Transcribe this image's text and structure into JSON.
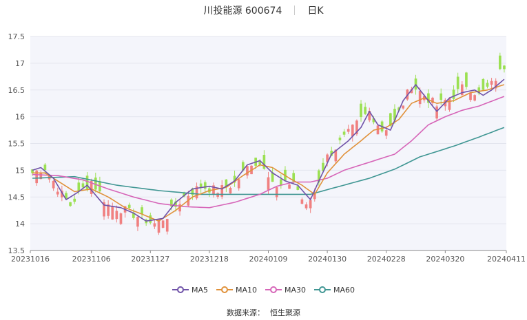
{
  "header": {
    "title": "川投能源 600674",
    "period": "日K"
  },
  "legend": [
    {
      "name": "MA5",
      "color": "#6f52a8"
    },
    {
      "name": "MA10",
      "color": "#e0913a"
    },
    {
      "name": "MA30",
      "color": "#d665b8"
    },
    {
      "name": "MA60",
      "color": "#3f9693"
    }
  ],
  "source": {
    "label": "数据来源：",
    "value": "恒生聚源"
  },
  "chart_data": {
    "type": "candlestick",
    "ylim": [
      13.5,
      17.5
    ],
    "y_ticks": [
      "13.5",
      "14",
      "14.5",
      "15",
      "15.5",
      "16",
      "16.5",
      "17",
      "17.5"
    ],
    "x_tick_labels": [
      "20231016",
      "20231106",
      "20231127",
      "20231218",
      "20240109",
      "20240130",
      "20240228",
      "20240320",
      "20240411"
    ],
    "x_tick_index": [
      0,
      14,
      28,
      42,
      56,
      70,
      84,
      98,
      112
    ],
    "n_days": 113,
    "up_color": "#f08080",
    "down_color": "#9be052",
    "anchors": [
      [
        0,
        14.95
      ],
      [
        3,
        15.05
      ],
      [
        7,
        14.55
      ],
      [
        9,
        14.35
      ],
      [
        12,
        14.65
      ],
      [
        14,
        14.8
      ],
      [
        18,
        14.35
      ],
      [
        22,
        14.25
      ],
      [
        26,
        14.1
      ],
      [
        29,
        14.0
      ],
      [
        32,
        14.15
      ],
      [
        36,
        14.5
      ],
      [
        40,
        14.7
      ],
      [
        44,
        14.62
      ],
      [
        48,
        14.75
      ],
      [
        52,
        15.15
      ],
      [
        55,
        15.1
      ],
      [
        58,
        14.65
      ],
      [
        62,
        14.8
      ],
      [
        65,
        14.3
      ],
      [
        67,
        14.6
      ],
      [
        70,
        15.25
      ],
      [
        74,
        15.6
      ],
      [
        78,
        15.95
      ],
      [
        80,
        16.1
      ],
      [
        83,
        15.75
      ],
      [
        86,
        15.9
      ],
      [
        90,
        16.6
      ],
      [
        93,
        16.4
      ],
      [
        96,
        16.2
      ],
      [
        100,
        16.4
      ],
      [
        103,
        16.6
      ],
      [
        106,
        16.4
      ],
      [
        109,
        16.6
      ],
      [
        112,
        16.95
      ]
    ],
    "ma5": [
      [
        0,
        15.0
      ],
      [
        2,
        15.05
      ],
      [
        5,
        14.85
      ],
      [
        8,
        14.45
      ],
      [
        11,
        14.6
      ],
      [
        13,
        14.72
      ],
      [
        17,
        14.35
      ],
      [
        21,
        14.3
      ],
      [
        24,
        14.2
      ],
      [
        27,
        14.05
      ],
      [
        31,
        14.1
      ],
      [
        34,
        14.4
      ],
      [
        38,
        14.65
      ],
      [
        42,
        14.7
      ],
      [
        45,
        14.65
      ],
      [
        48,
        14.8
      ],
      [
        51,
        15.1
      ],
      [
        54,
        15.18
      ],
      [
        57,
        14.95
      ],
      [
        60,
        14.8
      ],
      [
        63,
        14.72
      ],
      [
        66,
        14.45
      ],
      [
        68,
        14.8
      ],
      [
        71,
        15.3
      ],
      [
        75,
        15.55
      ],
      [
        78,
        15.8
      ],
      [
        80,
        16.1
      ],
      [
        82,
        15.85
      ],
      [
        85,
        15.75
      ],
      [
        88,
        16.3
      ],
      [
        91,
        16.6
      ],
      [
        93,
        16.4
      ],
      [
        96,
        16.1
      ],
      [
        99,
        16.35
      ],
      [
        102,
        16.45
      ],
      [
        105,
        16.5
      ],
      [
        107,
        16.4
      ],
      [
        109,
        16.5
      ],
      [
        112,
        16.7
      ]
    ],
    "ma10": [
      [
        0,
        14.95
      ],
      [
        3,
        14.95
      ],
      [
        7,
        14.75
      ],
      [
        10,
        14.6
      ],
      [
        14,
        14.65
      ],
      [
        18,
        14.5
      ],
      [
        22,
        14.3
      ],
      [
        26,
        14.18
      ],
      [
        30,
        14.05
      ],
      [
        34,
        14.25
      ],
      [
        38,
        14.5
      ],
      [
        42,
        14.62
      ],
      [
        46,
        14.68
      ],
      [
        50,
        14.9
      ],
      [
        54,
        15.1
      ],
      [
        57,
        15.05
      ],
      [
        61,
        14.85
      ],
      [
        64,
        14.72
      ],
      [
        67,
        14.55
      ],
      [
        70,
        14.95
      ],
      [
        74,
        15.3
      ],
      [
        78,
        15.55
      ],
      [
        81,
        15.75
      ],
      [
        84,
        15.8
      ],
      [
        87,
        15.95
      ],
      [
        90,
        16.25
      ],
      [
        93,
        16.35
      ],
      [
        96,
        16.25
      ],
      [
        100,
        16.3
      ],
      [
        104,
        16.45
      ],
      [
        108,
        16.5
      ],
      [
        112,
        16.6
      ]
    ],
    "ma30": [
      [
        0,
        14.92
      ],
      [
        6,
        14.9
      ],
      [
        12,
        14.82
      ],
      [
        18,
        14.65
      ],
      [
        24,
        14.5
      ],
      [
        30,
        14.38
      ],
      [
        36,
        14.32
      ],
      [
        42,
        14.3
      ],
      [
        48,
        14.4
      ],
      [
        54,
        14.55
      ],
      [
        58,
        14.7
      ],
      [
        62,
        14.78
      ],
      [
        66,
        14.78
      ],
      [
        70,
        14.85
      ],
      [
        74,
        15.0
      ],
      [
        78,
        15.1
      ],
      [
        82,
        15.2
      ],
      [
        86,
        15.3
      ],
      [
        90,
        15.55
      ],
      [
        94,
        15.85
      ],
      [
        98,
        16.0
      ],
      [
        102,
        16.12
      ],
      [
        106,
        16.2
      ],
      [
        112,
        16.38
      ]
    ],
    "ma60": [
      [
        0,
        14.85
      ],
      [
        10,
        14.88
      ],
      [
        20,
        14.72
      ],
      [
        30,
        14.62
      ],
      [
        40,
        14.55
      ],
      [
        50,
        14.55
      ],
      [
        60,
        14.55
      ],
      [
        66,
        14.55
      ],
      [
        72,
        14.68
      ],
      [
        80,
        14.85
      ],
      [
        86,
        15.02
      ],
      [
        92,
        15.25
      ],
      [
        100,
        15.45
      ],
      [
        106,
        15.62
      ],
      [
        112,
        15.8
      ]
    ]
  }
}
